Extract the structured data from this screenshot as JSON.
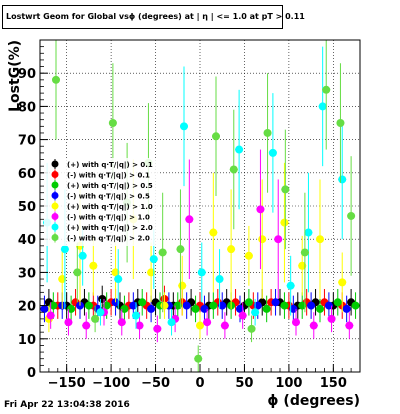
{
  "title": "Lostwrt Geom for Global vsϕ (degrees) at | η | <= 1.0 at pT > 0.11",
  "timestamp": "Fri Apr 22 13:04:38 2016",
  "colors": {
    "black": "#000000",
    "red": "#ff0000",
    "green": "#00cc00",
    "blue": "#0000ff",
    "yellow": "#ffff00",
    "magenta": "#ff00ff",
    "cyan": "#00ffff",
    "lightgreen": "#66dd44"
  },
  "chart_data": {
    "type": "scatter",
    "title": "Lostwrt Geom for Global vsϕ (degrees) at | η | <= 1.0 at pT > 0.11",
    "xlabel": "ϕ (degrees)",
    "ylabel": "LostG(%)",
    "xlim": [
      -180,
      180
    ],
    "ylim": [
      0,
      100
    ],
    "xticks": [
      -150,
      -100,
      -50,
      0,
      50,
      100,
      150
    ],
    "xtick_labels": [
      "−150",
      "−100",
      "−50",
      "0",
      "50",
      "100",
      "150"
    ],
    "yticks": [
      0,
      10,
      20,
      30,
      40,
      50,
      60,
      70,
      80,
      90
    ],
    "ytick_labels": [
      "0",
      "10",
      "20",
      "30",
      "40",
      "50",
      "60",
      "70",
      "80",
      "90"
    ],
    "grid": true,
    "legend_position": "left-middle",
    "legend": [
      "(+) with q·T/|q|) > 0.1",
      "(-) with q·T/|q|) > 0.1",
      "(+) with q·T/|q|) > 0.5",
      "(-) with q·T/|q|) > 0.5",
      "(+) with q·T/|q|) > 1.0",
      "(-) with q·T/|q|) > 1.0",
      "(+) with q·T/|q|) > 2.0",
      "(-) with q·T/|q|) > 2.0"
    ],
    "series": [
      {
        "color": "#000000",
        "x": [
          -170,
          -150,
          -130,
          -110,
          -90,
          -70,
          -50,
          -30,
          -10,
          10,
          30,
          50,
          70,
          90,
          110,
          130,
          150,
          170
        ],
        "y": [
          21,
          20,
          21,
          22,
          20,
          21,
          21,
          20,
          21,
          20,
          21,
          20,
          21,
          21,
          20,
          21,
          20,
          21
        ]
      },
      {
        "color": "#ff0000",
        "x": [
          -160,
          -140,
          -120,
          -100,
          -80,
          -60,
          -40,
          -20,
          0,
          20,
          40,
          60,
          80,
          100,
          120,
          140,
          160
        ],
        "y": [
          20,
          21,
          20,
          21,
          20,
          20,
          22,
          21,
          20,
          21,
          21,
          20,
          21,
          20,
          21,
          21,
          20
        ]
      },
      {
        "color": "#00cc00",
        "x": [
          -165,
          -145,
          -125,
          -105,
          -85,
          -65,
          -45,
          -25,
          -5,
          15,
          35,
          55,
          75,
          95,
          115,
          135,
          155,
          175
        ],
        "y": [
          20,
          19,
          20,
          20,
          19,
          21,
          20,
          20,
          19,
          20,
          20,
          21,
          19,
          20,
          20,
          19,
          21,
          20
        ]
      },
      {
        "color": "#0000ff",
        "x": [
          -175,
          -155,
          -135,
          -115,
          -95,
          -75,
          -55,
          -35,
          -15,
          5,
          25,
          45,
          65,
          85,
          105,
          125,
          145,
          165
        ],
        "y": [
          19,
          20,
          20,
          19,
          21,
          20,
          19,
          20,
          20,
          19,
          20,
          19,
          20,
          21,
          19,
          20,
          20,
          19
        ]
      },
      {
        "color": "#ffff00",
        "x": [
          -170,
          -155,
          -135,
          -120,
          -95,
          -75,
          -55,
          -40,
          -20,
          0,
          15,
          35,
          55,
          70,
          95,
          115,
          135,
          160
        ],
        "y": [
          16,
          28,
          38,
          32,
          30,
          46,
          30,
          20,
          26,
          14,
          42,
          37,
          35,
          40,
          45,
          32,
          40,
          27
        ]
      },
      {
        "color": "#ff00ff",
        "x": [
          -168,
          -148,
          -128,
          -108,
          -88,
          -68,
          -48,
          -28,
          -12,
          8,
          28,
          48,
          68,
          88,
          108,
          128,
          148,
          168
        ],
        "y": [
          17,
          15,
          14,
          18,
          15,
          14,
          13,
          16,
          46,
          15,
          14,
          17,
          49,
          40,
          15,
          14,
          16,
          14
        ]
      },
      {
        "color": "#00ffff",
        "x": [
          -172,
          -152,
          -132,
          -112,
          -92,
          -72,
          -52,
          -32,
          -18,
          2,
          22,
          44,
          62,
          82,
          102,
          122,
          138,
          160
        ],
        "y": [
          45,
          37,
          35,
          18,
          28,
          17,
          34,
          15,
          74,
          30,
          28,
          67,
          18,
          66,
          26,
          42,
          80,
          58
        ]
      },
      {
        "color": "#66dd44",
        "x": [
          -162,
          -138,
          -118,
          -98,
          -82,
          -58,
          -42,
          -22,
          -2,
          18,
          38,
          58,
          76,
          96,
          118,
          142,
          158,
          170
        ],
        "y": [
          88,
          30,
          16,
          75,
          51,
          63,
          36,
          37,
          4,
          71,
          61,
          13,
          72,
          55,
          36,
          85,
          75,
          47
        ]
      }
    ]
  }
}
